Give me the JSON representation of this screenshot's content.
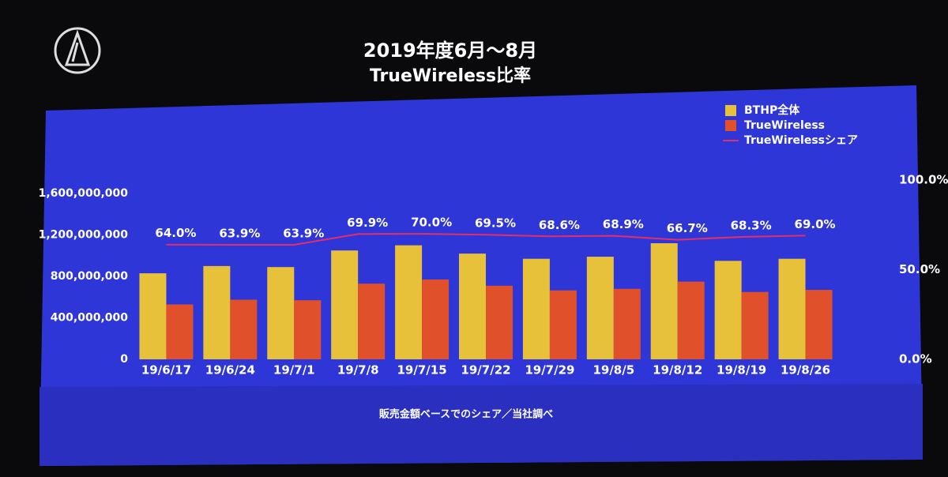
{
  "chart_data": {
    "type": "bar",
    "title": "2019年度6月〜8月",
    "subtitle": "TrueWireless比率",
    "footnote": "販売金額ベースでのシェア／当社調べ",
    "categories": [
      "19/6/17",
      "19/6/24",
      "19/7/1",
      "19/7/8",
      "19/7/15",
      "19/7/22",
      "19/7/29",
      "19/8/5",
      "19/8/12",
      "19/8/19",
      "19/8/26"
    ],
    "series": [
      {
        "name": "BTHP全体",
        "type": "bar",
        "color": "#e8c13a",
        "values": [
          830000000,
          900000000,
          890000000,
          1050000000,
          1100000000,
          1020000000,
          970000000,
          990000000,
          1120000000,
          950000000,
          970000000
        ]
      },
      {
        "name": "TrueWireless",
        "type": "bar",
        "color": "#e0502a",
        "values": [
          530000000,
          575000000,
          570000000,
          730000000,
          770000000,
          710000000,
          665000000,
          680000000,
          750000000,
          650000000,
          670000000
        ]
      },
      {
        "name": "TrueWirelessシェア",
        "type": "line",
        "axis": "y2",
        "color": "#e0306a",
        "values": [
          64.0,
          63.9,
          63.9,
          69.9,
          70.0,
          69.5,
          68.6,
          68.9,
          66.7,
          68.3,
          69.0
        ],
        "value_labels": [
          "64.0%",
          "63.9%",
          "63.9%",
          "69.9%",
          "70.0%",
          "69.5%",
          "68.6%",
          "68.9%",
          "66.7%",
          "68.3%",
          "69.0%"
        ]
      }
    ],
    "ylim": [
      0,
      1600000000
    ],
    "yticks": [
      0,
      {
        "value": 400000000,
        "label": "400,000,000"
      },
      {
        "value": 800000000,
        "label": "800,000,000"
      },
      {
        "value": 1200000000,
        "label": "1,200,000,000"
      },
      {
        "value": 1600000000,
        "label": "1,600,000,000"
      }
    ],
    "y2lim": [
      0,
      100
    ],
    "y2ticks": [
      {
        "value": 0,
        "label": "0.0%"
      },
      {
        "value": 50,
        "label": "50.0%"
      },
      {
        "value": 100,
        "label": "100.0%"
      }
    ],
    "legend": "top-right"
  }
}
